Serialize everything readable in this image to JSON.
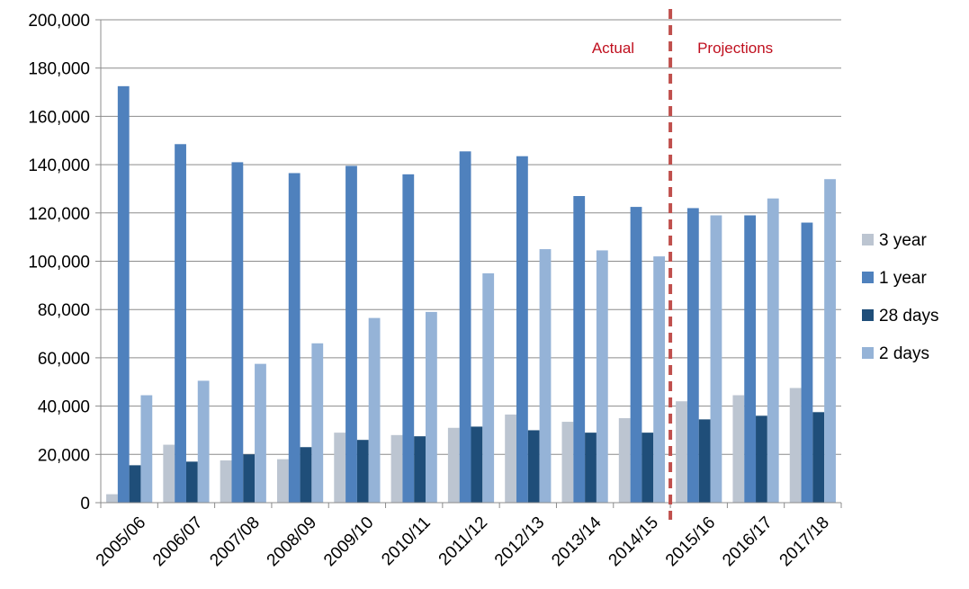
{
  "chart_data": {
    "type": "bar",
    "categories": [
      "2005/06",
      "2006/07",
      "2007/08",
      "2008/09",
      "2009/10",
      "2010/11",
      "2011/12",
      "2012/13",
      "2013/14",
      "2014/15",
      "2015/16",
      "2016/17",
      "2017/18"
    ],
    "series": [
      {
        "name": "3 year",
        "color": "#bcc5d1",
        "values": [
          3500,
          24000,
          17500,
          18000,
          29000,
          28000,
          31000,
          36500,
          33500,
          35000,
          42000,
          44500,
          47500
        ]
      },
      {
        "name": "1 year",
        "color": "#4f81bd",
        "values": [
          172500,
          148500,
          141000,
          136500,
          139500,
          136000,
          145500,
          143500,
          127000,
          122500,
          122000,
          119000,
          116000
        ]
      },
      {
        "name": "28 days",
        "color": "#1f4e79",
        "values": [
          15500,
          17000,
          20000,
          23000,
          26000,
          27500,
          31500,
          30000,
          29000,
          29000,
          34500,
          36000,
          37500
        ]
      },
      {
        "name": "2 days",
        "color": "#95b3d7",
        "values": [
          44500,
          50500,
          57500,
          66000,
          76500,
          79000,
          95000,
          105000,
          104500,
          102000,
          119000,
          126000,
          134000
        ]
      }
    ],
    "ylim": [
      0,
      200000
    ],
    "yticks": [
      0,
      20000,
      40000,
      60000,
      80000,
      100000,
      120000,
      140000,
      160000,
      180000,
      200000
    ],
    "ytick_labels": [
      "0",
      "20,000",
      "40,000",
      "60,000",
      "80,000",
      "100,000",
      "120,000",
      "140,000",
      "160,000",
      "180,000",
      "200,000"
    ],
    "grid": true,
    "legend_position": "right",
    "divider": {
      "after_category": "2014/15",
      "color": "#c0504d",
      "label_left": "Actual",
      "label_right": "Projections"
    }
  }
}
